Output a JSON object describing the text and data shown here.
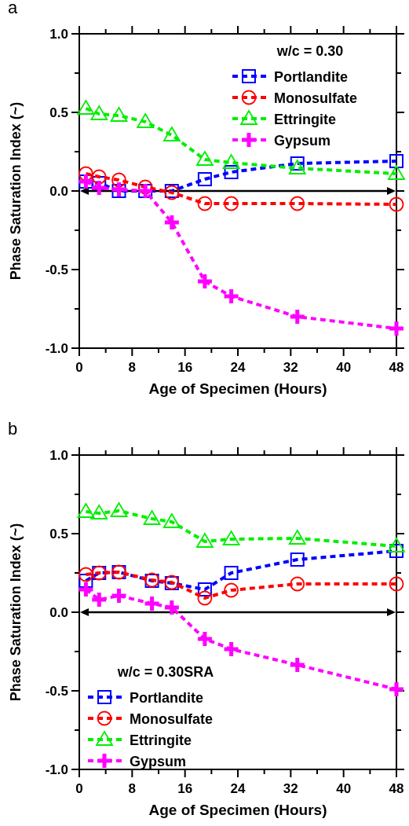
{
  "chart_data": [
    {
      "type": "line",
      "title": "a",
      "xlabel": "Age of Specimen (Hours)",
      "ylabel": "Phase Saturation Index (~)",
      "legend_title": "w/c = 0.30",
      "legend": "top right",
      "line_style": "dashed",
      "x": [
        1,
        3,
        6,
        10,
        14,
        19,
        23,
        33,
        48
      ],
      "xlim": [
        0,
        48
      ],
      "xticks": [
        0,
        {
          "value": 4,
          "label": null
        },
        8,
        {
          "value": 12,
          "label": null
        },
        16,
        {
          "value": 20,
          "label": null
        },
        24,
        {
          "value": 28,
          "label": null
        },
        32,
        {
          "value": 36,
          "label": null
        },
        40,
        {
          "value": 44,
          "label": null
        },
        48
      ],
      "ylim": [
        -1,
        1
      ],
      "yticks": [
        {
          "value": -1,
          "label": "-1.0"
        },
        {
          "value": -0.75,
          "label": null
        },
        {
          "value": -0.5,
          "label": "-0.5"
        },
        {
          "value": -0.25,
          "label": null
        },
        {
          "value": 0,
          "label": "0.0"
        },
        {
          "value": 0.25,
          "label": null
        },
        {
          "value": 0.5,
          "label": "0.5"
        },
        {
          "value": 0.75,
          "label": null
        },
        {
          "value": 1,
          "label": "1.0"
        }
      ],
      "ref_lines": [
        {
          "axis": "y",
          "value": 0,
          "color": "#000000"
        }
      ],
      "series": [
        {
          "name": "Portlandite",
          "color": "#0000ff",
          "marker": "square",
          "values": [
            0.06,
            0.05,
            0.0,
            0.0,
            0.0,
            0.075,
            0.12,
            0.175,
            0.19
          ]
        },
        {
          "name": "Monosulfate",
          "color": "#ff0000",
          "marker": "circle",
          "values": [
            0.11,
            0.09,
            0.07,
            0.025,
            -0.01,
            -0.08,
            -0.08,
            -0.08,
            -0.085
          ]
        },
        {
          "name": "Ettringite",
          "color": "#00ee00",
          "marker": "triangle",
          "values": [
            0.525,
            0.49,
            0.48,
            0.44,
            0.355,
            0.2,
            0.18,
            0.145,
            0.11
          ]
        },
        {
          "name": "Gypsum",
          "color": "#ff00ff",
          "marker": "cross",
          "values": [
            0.06,
            0.02,
            0.01,
            0.0,
            -0.2,
            -0.575,
            -0.67,
            -0.8,
            -0.875
          ]
        }
      ]
    },
    {
      "type": "line",
      "title": "b",
      "xlabel": "Age of Specimen (Hours)",
      "ylabel": "Phase Saturation Index (~)",
      "legend_title": "w/c = 0.30SRA",
      "legend": "bottom left",
      "line_style": "dashed",
      "x": [
        1,
        3,
        6,
        11,
        14,
        19,
        23,
        33,
        48
      ],
      "xlim": [
        0,
        48
      ],
      "xticks": [
        0,
        {
          "value": 4,
          "label": null
        },
        8,
        {
          "value": 12,
          "label": null
        },
        16,
        {
          "value": 20,
          "label": null
        },
        24,
        {
          "value": 28,
          "label": null
        },
        32,
        {
          "value": 36,
          "label": null
        },
        40,
        {
          "value": 44,
          "label": null
        },
        48
      ],
      "ylim": [
        -1,
        1
      ],
      "yticks": [
        {
          "value": -1,
          "label": "-1.0"
        },
        {
          "value": -0.75,
          "label": null
        },
        {
          "value": -0.5,
          "label": "-0.5"
        },
        {
          "value": -0.25,
          "label": null
        },
        {
          "value": 0,
          "label": "0.0"
        },
        {
          "value": 0.25,
          "label": null
        },
        {
          "value": 0.5,
          "label": "0.5"
        },
        {
          "value": 0.75,
          "label": null
        },
        {
          "value": 1,
          "label": "1.0"
        }
      ],
      "ref_lines": [
        {
          "axis": "y",
          "value": 0,
          "color": "#000000"
        }
      ],
      "series": [
        {
          "name": "Portlandite",
          "color": "#0000ff",
          "marker": "square",
          "values": [
            0.2,
            0.25,
            0.255,
            0.2,
            0.185,
            0.145,
            0.25,
            0.335,
            0.39
          ]
        },
        {
          "name": "Monosulfate",
          "color": "#ff0000",
          "marker": "circle",
          "values": [
            0.24,
            0.25,
            0.255,
            0.205,
            0.19,
            0.09,
            0.14,
            0.18,
            0.18
          ]
        },
        {
          "name": "Ettringite",
          "color": "#00ee00",
          "marker": "triangle",
          "values": [
            0.64,
            0.63,
            0.645,
            0.595,
            0.575,
            0.45,
            0.465,
            0.47,
            0.42
          ]
        },
        {
          "name": "Gypsum",
          "color": "#ff00ff",
          "marker": "cross",
          "values": [
            0.145,
            0.08,
            0.105,
            0.055,
            0.03,
            -0.17,
            -0.235,
            -0.335,
            -0.49
          ]
        }
      ]
    }
  ]
}
